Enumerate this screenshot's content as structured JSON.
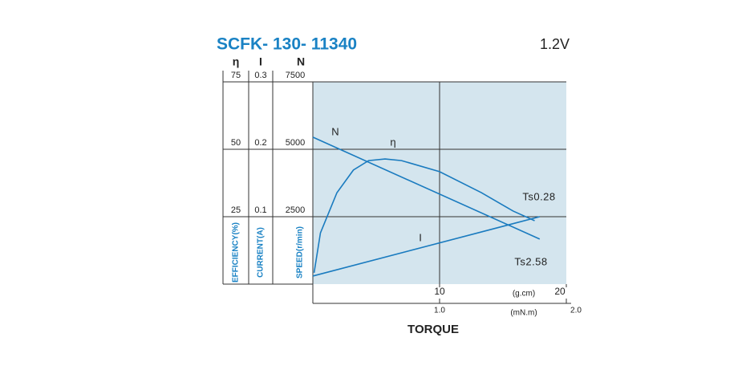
{
  "chart_data": {
    "type": "line",
    "title": "SCFK- 130- 11340",
    "subtitle": "1.2V",
    "xlabel": "TORQUE",
    "xlim": [
      0,
      20
    ],
    "xticks": [
      10,
      20
    ],
    "x_unit": "(g.cm)",
    "x2lim": [
      0,
      2
    ],
    "x2ticks": [
      {
        "value": 1,
        "label": "1.0"
      },
      {
        "value": 2,
        "label": "2.0"
      }
    ],
    "x2_unit": "(mN.m)",
    "y_axes": [
      {
        "name": "η",
        "label": "EFFICIENCY(%)",
        "ylim": [
          0,
          75
        ],
        "yticks": [
          25,
          50,
          75
        ]
      },
      {
        "name": "I",
        "label": "CURRENT(A)",
        "ylim": [
          0,
          0.3
        ],
        "yticks": [
          0.1,
          0.2,
          0.3
        ]
      },
      {
        "name": "N",
        "label": "SPEED(r/min)",
        "ylim": [
          0,
          7500
        ],
        "yticks": [
          2500,
          5000,
          7500
        ]
      }
    ],
    "grid": true,
    "color": "#1a7bbf",
    "background": "#d4e5ee",
    "series": [
      {
        "name": "N",
        "axis": 2,
        "x": [
          0,
          17.9
        ],
        "values": [
          5450,
          1670
        ]
      },
      {
        "name": "η",
        "axis": 0,
        "x": [
          0.1,
          0.6,
          1.9,
          3.2,
          4.4,
          5.7,
          7.0,
          10.0,
          13.3,
          15.8,
          17.5
        ],
        "values": [
          4.2,
          19,
          33.9,
          42.3,
          45.8,
          46.4,
          45.8,
          41.7,
          33.9,
          27.1,
          23.5
        ]
      },
      {
        "name": "I",
        "axis": 1,
        "x": [
          0,
          17.9
        ],
        "values": [
          0.012,
          0.1
        ]
      }
    ],
    "annotations": [
      "Ts0.28",
      "Ts2.58"
    ]
  }
}
